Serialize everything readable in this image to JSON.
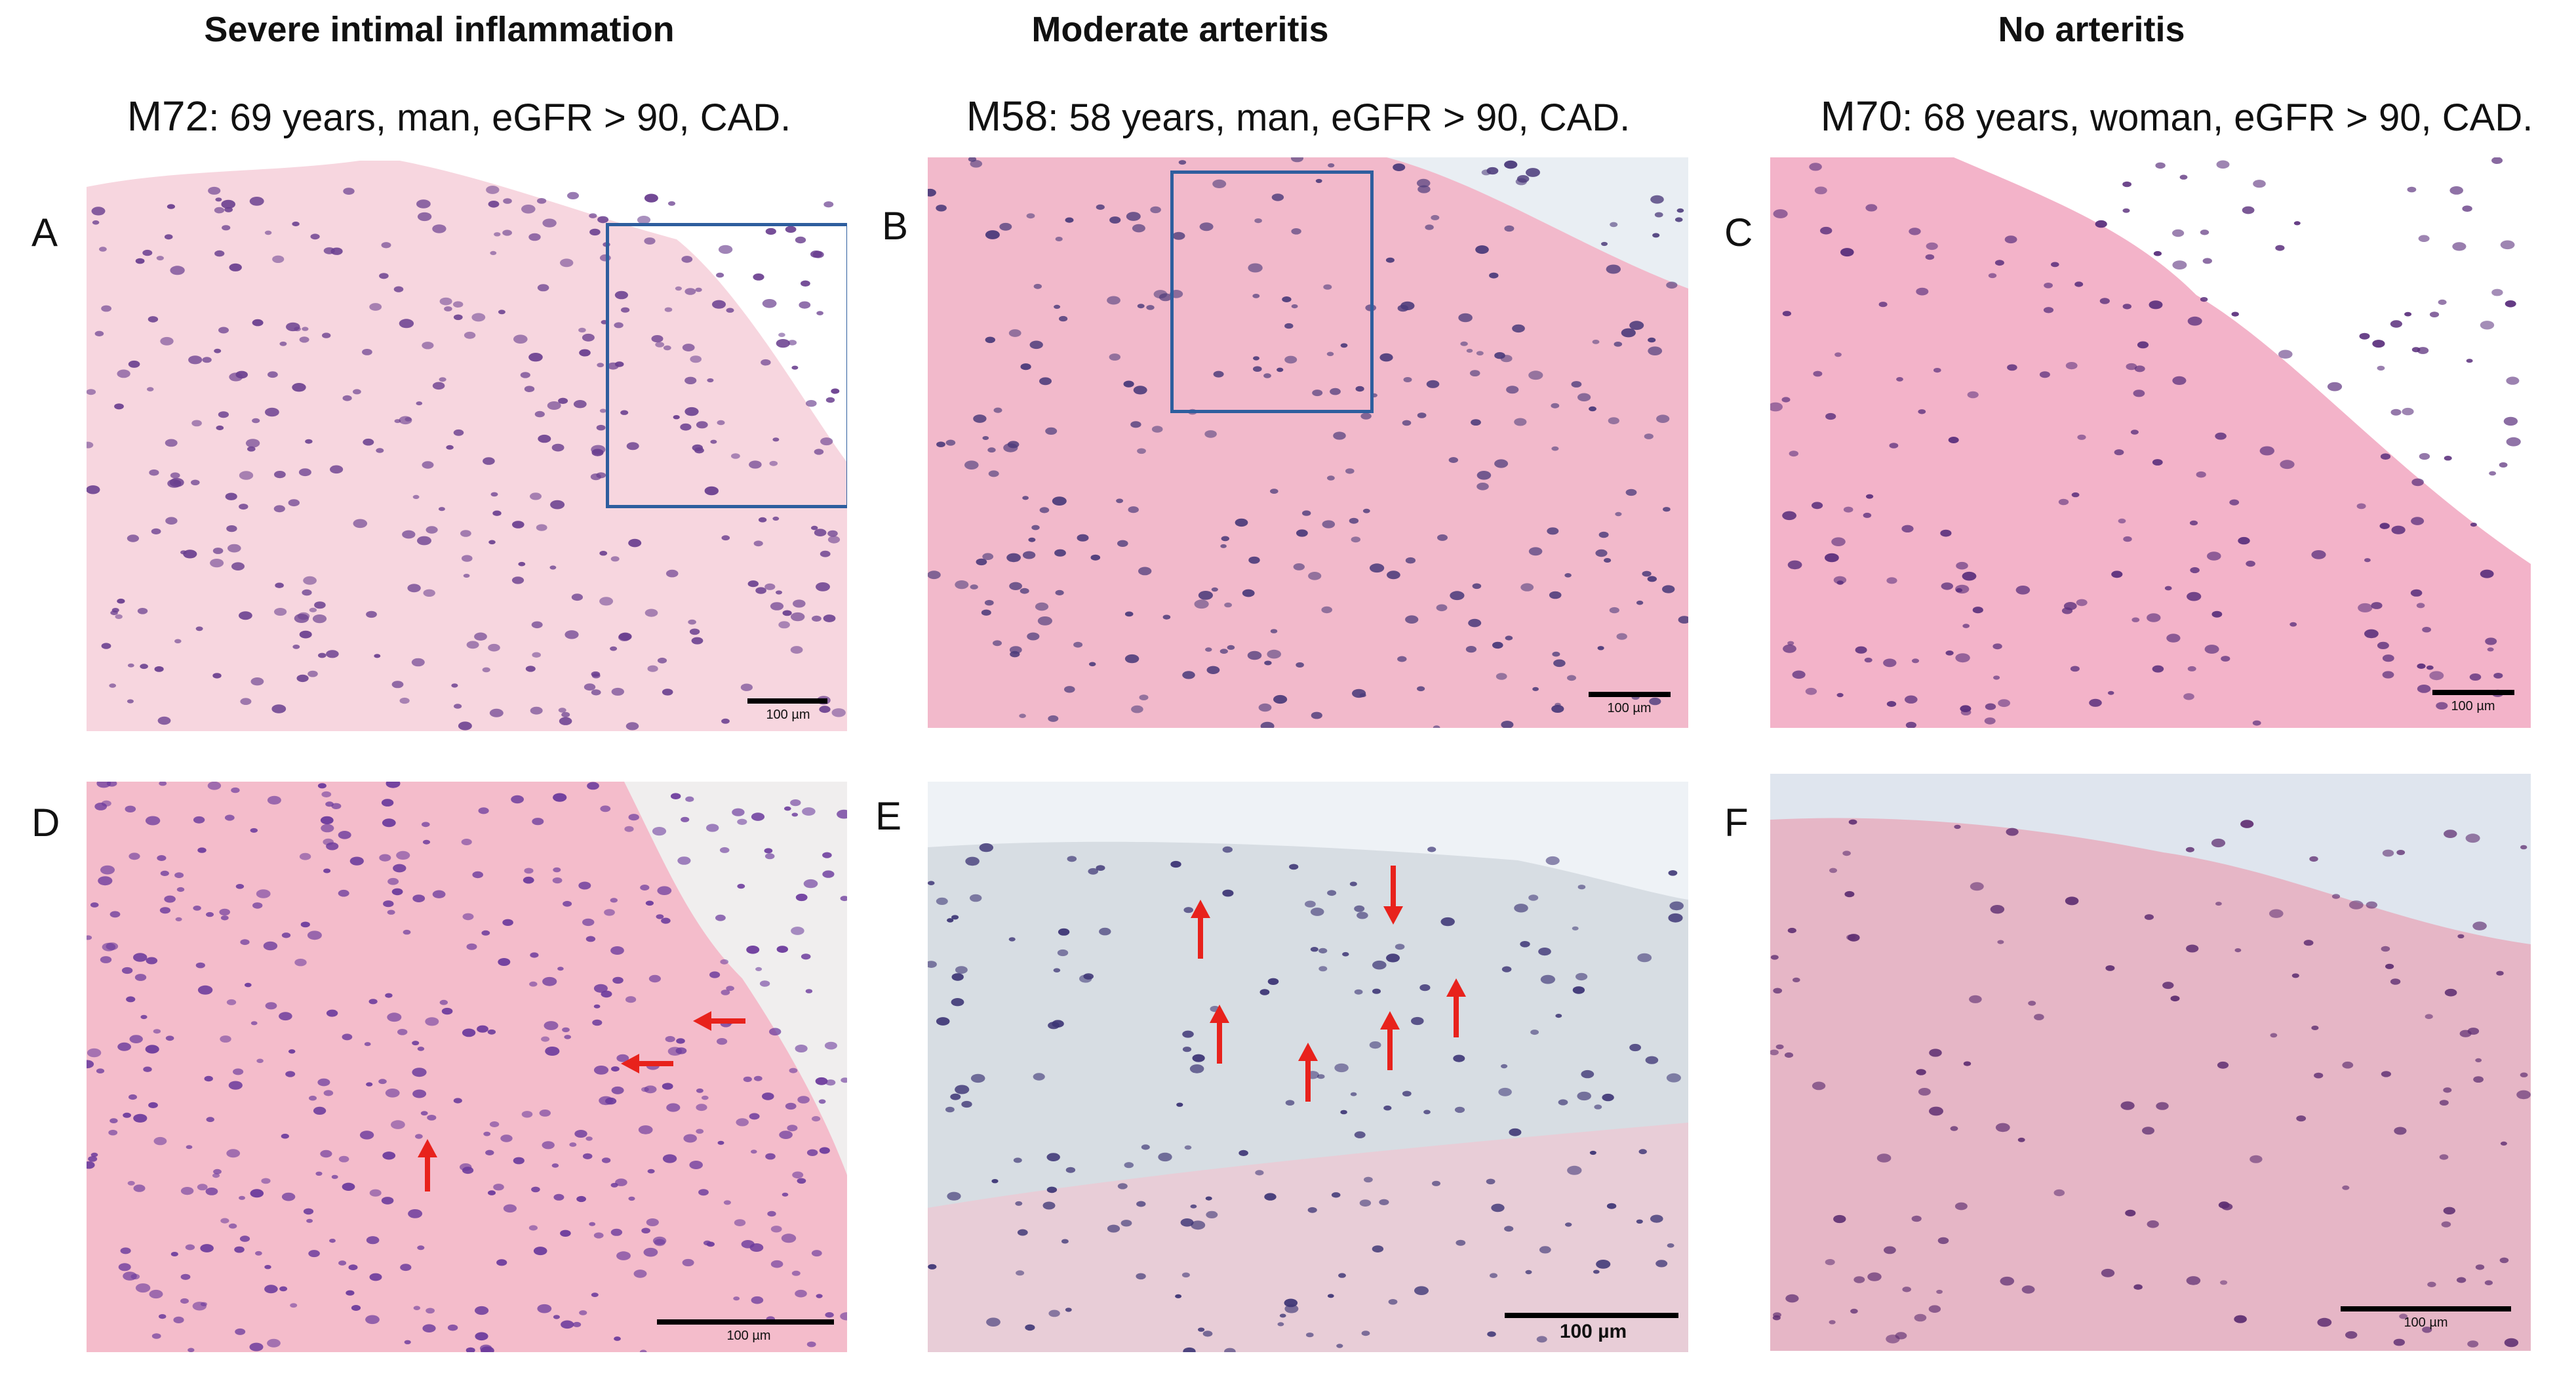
{
  "columns": [
    {
      "title": "Severe intimal inflammation",
      "code": "M72",
      "description": "69 years, man, eGFR > 90, CAD."
    },
    {
      "title": "Moderate arteritis",
      "code": "M58",
      "description": "58 years, man, eGFR > 90, CAD."
    },
    {
      "title": "No arteritis",
      "code": "M70",
      "description": "68 years, woman, eGFR > 90, CAD."
    }
  ],
  "panels": [
    {
      "letter": "A",
      "scale": "100 µm",
      "colors": {
        "tissue": "#f7d6df",
        "nuclei": "#6a3f8f"
      }
    },
    {
      "letter": "B",
      "scale": "100 µm",
      "colors": {
        "tissue": "#f2b9cb",
        "nuclei": "#4b3a7a"
      }
    },
    {
      "letter": "C",
      "scale": "100 µm",
      "colors": {
        "tissue": "#f3b3c9",
        "nuclei": "#5a2f7c"
      }
    },
    {
      "letter": "D",
      "scale": "100 µm",
      "colors": {
        "tissue": "#f4bccb",
        "nuclei": "#6b3a9c"
      }
    },
    {
      "letter": "E",
      "scale": "100 µm",
      "colors": {
        "tissue": "#d7dde3",
        "nuclei": "#3d3575"
      }
    },
    {
      "letter": "F",
      "scale": "100 µm",
      "colors": {
        "tissue": "#e6b6c6",
        "nuclei": "#5f2f72"
      }
    }
  ],
  "colors": {
    "inset_box": "#2e5e9e",
    "arrow": "#e8221c",
    "background": "#ffffff"
  }
}
